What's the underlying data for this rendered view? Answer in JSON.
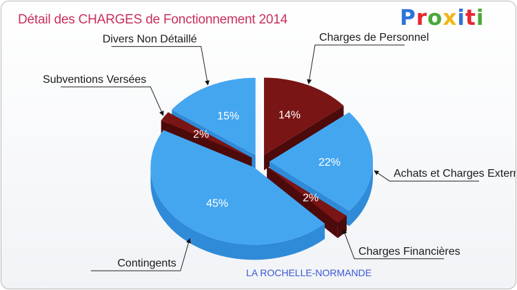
{
  "header": {
    "title": "Détail des CHARGES de Fonctionnement 2014",
    "logo_text": "Proxiti",
    "logo_colors": [
      "#2e73d8",
      "#e8262f",
      "#49a938",
      "#f2b617",
      "#2e73d8",
      "#e8262f",
      "#49a938"
    ]
  },
  "footer": {
    "place": "LA ROCHELLE-NORMANDE"
  },
  "colors": {
    "blue": "#45a6f0",
    "blue_side": "#2f8bd8",
    "red": "#7a1515",
    "red_side": "#4c0a0a",
    "title": "#c8305a",
    "subtitle": "#3b58d8"
  },
  "chart_data": {
    "type": "pie",
    "title": "Détail des CHARGES de Fonctionnement 2014",
    "subtitle": "LA ROCHELLE-NORMANDE",
    "legend": "none",
    "slices": [
      {
        "label": "Charges de Personnel",
        "value": 14,
        "pct_label": "14%",
        "color": "#7a1515"
      },
      {
        "label": "Achats et Charges Externes",
        "value": 22,
        "pct_label": "22%",
        "color": "#45a6f0"
      },
      {
        "label": "Charges Financières",
        "value": 2,
        "pct_label": "2%",
        "color": "#7a1515"
      },
      {
        "label": "Contingents",
        "value": 45,
        "pct_label": "45%",
        "color": "#45a6f0"
      },
      {
        "label": "Subventions Versées",
        "value": 2,
        "pct_label": "2%",
        "color": "#7a1515"
      },
      {
        "label": "Divers Non Détaillé",
        "value": 15,
        "pct_label": "15%",
        "color": "#45a6f0"
      }
    ]
  }
}
